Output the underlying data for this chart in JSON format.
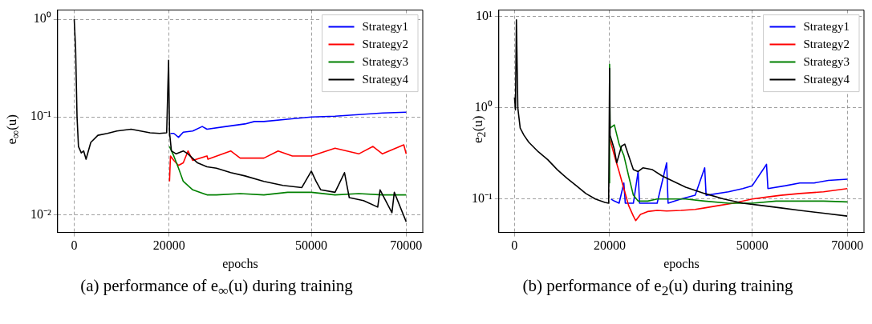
{
  "chart_data": [
    {
      "type": "line",
      "title": "(a) performance of e$_{∞}$(u) during training",
      "xlabel": "epochs",
      "ylabel": "e$_{∞}$(u)",
      "log": "y",
      "grid": true,
      "legend": "top right",
      "marker": "none",
      "line_style": "solid",
      "xlim": [
        -3500,
        73500
      ],
      "xticks": [
        0,
        20000,
        50000,
        70000
      ],
      "ylim": [
        0.0066,
        1.24
      ],
      "yticks": [
        {
          "value": 0.01,
          "label": "10⁻²"
        },
        {
          "value": 0.1,
          "label": "10⁻¹"
        },
        {
          "value": 1,
          "label": "10⁰"
        }
      ],
      "series": [
        {
          "name": "Strategy1",
          "color": "#0000ff",
          "x": [
            20300,
            21000,
            22000,
            23000,
            25000,
            27000,
            28000,
            32000,
            36000,
            38000,
            40000,
            45000,
            50000,
            55000,
            60000,
            65000,
            70000
          ],
          "values": [
            0.068,
            0.068,
            0.062,
            0.07,
            0.072,
            0.08,
            0.075,
            0.08,
            0.085,
            0.09,
            0.09,
            0.095,
            0.1,
            0.102,
            0.106,
            0.11,
            0.112
          ]
        },
        {
          "name": "Strategy2",
          "color": "#ff0000",
          "x": [
            20100,
            20300,
            21000,
            22000,
            23000,
            24000,
            25000,
            28000,
            28200,
            33000,
            35000,
            40000,
            43000,
            46000,
            50000,
            55000,
            60000,
            63000,
            65000,
            69500,
            70000
          ],
          "values": [
            0.022,
            0.04,
            0.036,
            0.032,
            0.034,
            0.045,
            0.036,
            0.04,
            0.037,
            0.045,
            0.038,
            0.038,
            0.045,
            0.04,
            0.04,
            0.048,
            0.042,
            0.05,
            0.042,
            0.052,
            0.042
          ]
        },
        {
          "name": "Strategy3",
          "color": "#008000",
          "x": [
            20100,
            21000,
            22000,
            23000,
            25000,
            28000,
            30000,
            35000,
            40000,
            45000,
            50000,
            55000,
            60000,
            65000,
            70000
          ],
          "values": [
            0.05,
            0.04,
            0.03,
            0.022,
            0.018,
            0.016,
            0.016,
            0.0165,
            0.016,
            0.017,
            0.017,
            0.016,
            0.0165,
            0.016,
            0.016
          ]
        },
        {
          "name": "Strategy4",
          "color": "#000000",
          "x": [
            0,
            300,
            600,
            900,
            1500,
            2000,
            2500,
            3500,
            5000,
            7000,
            9000,
            12000,
            14000,
            16000,
            18000,
            19500,
            19900,
            20100,
            20500,
            21500,
            23000,
            24000,
            26000,
            28000,
            30000,
            33000,
            36000,
            40000,
            44000,
            48000,
            50000,
            51000,
            52000,
            55000,
            57000,
            58000,
            61000,
            64000,
            64500,
            67000,
            67500,
            70000
          ],
          "values": [
            1.0,
            0.5,
            0.1,
            0.05,
            0.043,
            0.045,
            0.037,
            0.055,
            0.065,
            0.068,
            0.072,
            0.075,
            0.072,
            0.069,
            0.068,
            0.069,
            0.38,
            0.07,
            0.045,
            0.042,
            0.045,
            0.042,
            0.034,
            0.031,
            0.03,
            0.027,
            0.025,
            0.022,
            0.02,
            0.019,
            0.028,
            0.022,
            0.018,
            0.017,
            0.027,
            0.015,
            0.014,
            0.012,
            0.018,
            0.0105,
            0.017,
            0.0085
          ]
        }
      ]
    },
    {
      "type": "line",
      "title": "(b) performance of e$_{2}$(u) during training",
      "xlabel": "epochs",
      "ylabel": "e$_{2}$(u)",
      "log": "y",
      "grid": true,
      "legend": "top right",
      "marker": "none",
      "line_style": "solid",
      "xlim": [
        -3300,
        73500
      ],
      "xticks": [
        0,
        20000,
        50000,
        70000
      ],
      "ylim": [
        0.043,
        11.8
      ],
      "yticks": [
        {
          "value": 0.1,
          "label": "10⁻¹"
        },
        {
          "value": 1,
          "label": "10⁰"
        },
        {
          "value": 10,
          "label": "10¹"
        }
      ],
      "series": [
        {
          "name": "Strategy1",
          "color": "#0000ff",
          "x": [
            20300,
            21000,
            22000,
            23000,
            23300,
            25000,
            26000,
            26300,
            30000,
            32000,
            32300,
            35000,
            38000,
            40000,
            40300,
            45000,
            48000,
            50000,
            53000,
            53300,
            57000,
            60000,
            63000,
            66000,
            70000
          ],
          "values": [
            0.1,
            0.095,
            0.09,
            0.15,
            0.09,
            0.09,
            0.2,
            0.09,
            0.09,
            0.25,
            0.09,
            0.1,
            0.11,
            0.22,
            0.11,
            0.12,
            0.13,
            0.14,
            0.24,
            0.13,
            0.14,
            0.15,
            0.15,
            0.16,
            0.165
          ]
        },
        {
          "name": "Strategy2",
          "color": "#ff0000",
          "x": [
            20100,
            21000,
            22000,
            23000,
            24000,
            25000,
            25500,
            26500,
            28000,
            30000,
            32000,
            35000,
            38000,
            40000,
            43000,
            46000,
            50000,
            53000,
            56000,
            60000,
            65000,
            70000
          ],
          "values": [
            0.45,
            0.3,
            0.2,
            0.13,
            0.085,
            0.065,
            0.058,
            0.068,
            0.073,
            0.075,
            0.074,
            0.075,
            0.077,
            0.08,
            0.085,
            0.09,
            0.1,
            0.105,
            0.11,
            0.115,
            0.12,
            0.13
          ]
        },
        {
          "name": "Strategy3",
          "color": "#008000",
          "x": [
            19900,
            20000,
            20100,
            21000,
            22000,
            23000,
            24000,
            25000,
            26000,
            28000,
            30000,
            33000,
            36000,
            40000,
            45000,
            50000,
            55000,
            60000,
            65000,
            70000
          ],
          "values": [
            0.15,
            3.0,
            0.6,
            0.65,
            0.4,
            0.3,
            0.18,
            0.11,
            0.095,
            0.095,
            0.1,
            0.1,
            0.1,
            0.095,
            0.09,
            0.09,
            0.095,
            0.095,
            0.095,
            0.093
          ]
        },
        {
          "name": "Strategy4",
          "color": "#000000",
          "x": [
            0,
            200,
            400,
            700,
            1200,
            2000,
            3000,
            5000,
            7000,
            9000,
            11000,
            13000,
            15000,
            17000,
            19000,
            19800,
            20000,
            20100,
            21000,
            21500,
            22500,
            23200,
            24000,
            25000,
            26000,
            27000,
            29000,
            31000,
            33000,
            36000,
            40000,
            44000,
            48000,
            52000,
            56000,
            60000,
            65000,
            70000
          ],
          "values": [
            1.3,
            0.95,
            9.2,
            1.0,
            0.6,
            0.5,
            0.42,
            0.33,
            0.27,
            0.21,
            0.17,
            0.14,
            0.115,
            0.1,
            0.092,
            0.09,
            2.7,
            0.5,
            0.35,
            0.25,
            0.38,
            0.4,
            0.3,
            0.21,
            0.2,
            0.22,
            0.21,
            0.18,
            0.16,
            0.135,
            0.115,
            0.1,
            0.09,
            0.085,
            0.08,
            0.075,
            0.07,
            0.065
          ]
        }
      ]
    }
  ]
}
